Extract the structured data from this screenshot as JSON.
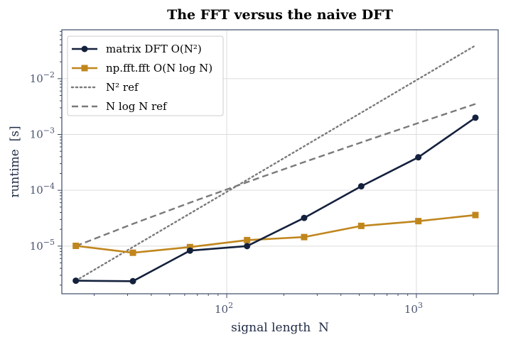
{
  "chart_data": {
    "type": "line",
    "title": "The FFT versus the naive DFT",
    "xlabel": "signal length  N",
    "ylabel": "runtime  [s]",
    "x_scale": "log",
    "y_scale": "log",
    "xlim": [
      13.5,
      2700
    ],
    "ylim": [
      1.4e-06,
      0.075
    ],
    "grid": true,
    "legend_position": "top-left",
    "x_ticks": [
      {
        "value": 100,
        "base": "10",
        "exp": "2"
      },
      {
        "value": 1000,
        "base": "10",
        "exp": "3"
      }
    ],
    "y_ticks": [
      {
        "value": 1e-05,
        "base": "10",
        "exp": "−5"
      },
      {
        "value": 0.0001,
        "base": "10",
        "exp": "−4"
      },
      {
        "value": 0.001,
        "base": "10",
        "exp": "−3"
      },
      {
        "value": 0.01,
        "base": "10",
        "exp": "−2"
      }
    ],
    "x": [
      16,
      32,
      64,
      128,
      256,
      512,
      1024,
      2048
    ],
    "series": [
      {
        "name": "matrix DFT  O(N²)",
        "color": "#14213d",
        "marker": "circle",
        "style": "solid",
        "values": [
          2.4e-06,
          2.35e-06,
          8.3e-06,
          1e-05,
          3.2e-05,
          0.000118,
          0.00039,
          0.002
        ]
      },
      {
        "name": "np.fft.fft  O(N log N)",
        "color": "#c0861d",
        "marker": "square",
        "style": "solid",
        "values": [
          1.01e-05,
          7.6e-06,
          9.6e-06,
          1.28e-05,
          1.45e-05,
          2.3e-05,
          2.8e-05,
          3.6e-05
        ]
      },
      {
        "name": "N² ref",
        "color": "#7a7a7a",
        "marker": "none",
        "style": "dotted",
        "values": [
          2.4e-06,
          9.6e-06,
          3.84e-05,
          0.0001536,
          0.0006144,
          0.0024576,
          0.0098304,
          0.0393
        ]
      },
      {
        "name": "N log N ref",
        "color": "#7a7a7a",
        "marker": "none",
        "style": "dashed",
        "values": [
          1e-05,
          2.5e-05,
          6e-05,
          0.00014,
          0.00032,
          0.00072,
          0.0016,
          0.00352
        ]
      }
    ]
  }
}
